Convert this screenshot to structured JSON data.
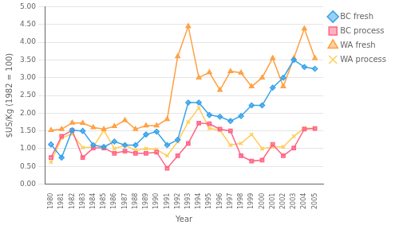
{
  "chart_data": {
    "type": "line",
    "x_label": "Year",
    "y_label": "$US/Kg (1982 = 100)",
    "x": [
      1980,
      1981,
      1982,
      1983,
      1984,
      1985,
      1986,
      1987,
      1988,
      1989,
      1990,
      1991,
      1992,
      1993,
      1994,
      1995,
      1996,
      1997,
      1998,
      1999,
      2000,
      2001,
      2002,
      2003,
      2004,
      2005
    ],
    "series": [
      {
        "name": "BC fresh",
        "marker": "diamond",
        "values": [
          1.12,
          0.75,
          1.52,
          1.5,
          1.1,
          1.05,
          1.2,
          1.1,
          1.1,
          1.4,
          1.48,
          1.1,
          1.25,
          2.3,
          2.3,
          1.95,
          1.9,
          1.78,
          1.92,
          2.22,
          2.22,
          2.72,
          3.0,
          3.5,
          3.3,
          3.25
        ]
      },
      {
        "name": "BC process",
        "marker": "square",
        "values": [
          0.75,
          1.35,
          1.52,
          0.75,
          1.02,
          1.02,
          0.87,
          0.93,
          0.87,
          0.87,
          0.9,
          0.45,
          0.8,
          1.15,
          1.72,
          1.7,
          1.55,
          1.5,
          0.8,
          0.65,
          0.68,
          1.12,
          0.8,
          1.02,
          1.55,
          1.57
        ]
      },
      {
        "name": "WA fresh",
        "marker": "triangle",
        "values": [
          1.52,
          1.55,
          1.73,
          1.72,
          1.6,
          1.55,
          1.63,
          1.8,
          1.55,
          1.65,
          1.65,
          1.83,
          3.6,
          4.45,
          3.0,
          3.15,
          2.65,
          3.18,
          3.14,
          2.75,
          3.0,
          3.55,
          2.75,
          3.55,
          4.38,
          3.55
        ]
      },
      {
        "name": "WA process",
        "marker": "x",
        "values": [
          0.62,
          1.3,
          1.42,
          1.03,
          1.05,
          1.52,
          1.0,
          1.1,
          0.95,
          1.0,
          0.98,
          0.8,
          1.2,
          1.75,
          2.15,
          1.57,
          1.52,
          1.1,
          1.15,
          1.4,
          1.0,
          1.05,
          1.05,
          1.35,
          1.58,
          1.57
        ]
      }
    ],
    "xlim": [
      1979.4,
      2005.8
    ],
    "xticks": [
      1980,
      1981,
      1982,
      1983,
      1984,
      1985,
      1986,
      1987,
      1988,
      1989,
      1990,
      1991,
      1992,
      1993,
      1994,
      1995,
      1996,
      1997,
      1998,
      1999,
      2000,
      2001,
      2002,
      2003,
      2004,
      2005
    ],
    "ylim": [
      0.0,
      5.0
    ],
    "yticks": [
      {
        "value": 0.0,
        "label": "0.00"
      },
      {
        "value": 0.5,
        "label": "0.50"
      },
      {
        "value": 1.0,
        "label": "1.00"
      },
      {
        "value": 1.5,
        "label": "1.50"
      },
      {
        "value": 2.0,
        "label": "2.00"
      },
      {
        "value": 2.5,
        "label": "2.50"
      },
      {
        "value": 3.0,
        "label": "3.00"
      },
      {
        "value": 3.5,
        "label": "3.50"
      },
      {
        "value": 4.0,
        "label": "4.00"
      },
      {
        "value": 4.5,
        "label": "4.50"
      },
      {
        "value": 5.0,
        "label": "5.00"
      }
    ],
    "grid": "y",
    "legend": "right"
  }
}
